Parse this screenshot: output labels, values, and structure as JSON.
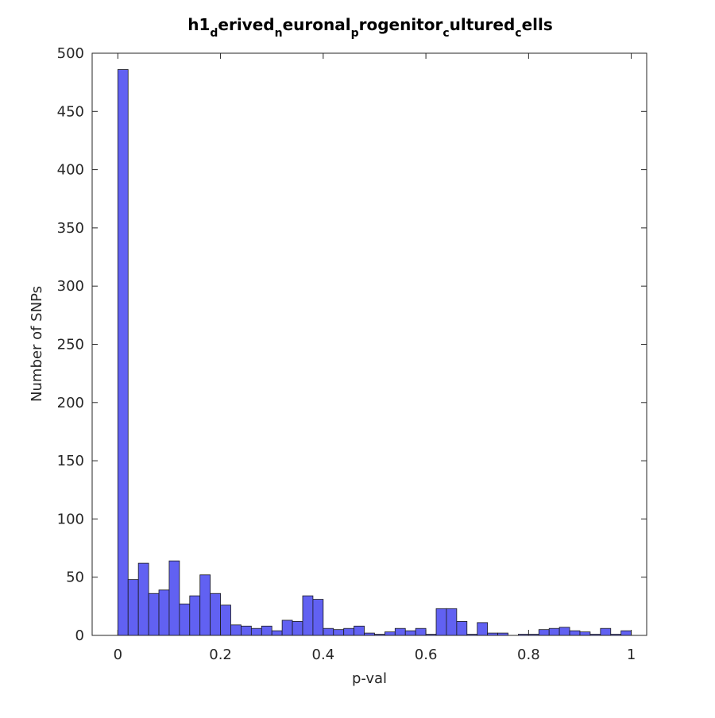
{
  "chart_data": {
    "type": "histogram",
    "title": "h1_derived_neuronal_progenitor_cultured_cells",
    "x_label": "p-val",
    "y_label": "Number of SNPs",
    "bins": [
      0,
      0.02,
      0.04,
      0.06,
      0.08,
      0.1,
      0.12,
      0.14,
      0.16,
      0.18,
      0.2,
      0.22,
      0.24,
      0.26,
      0.28,
      0.3,
      0.32,
      0.34,
      0.36,
      0.38,
      0.4,
      0.42,
      0.44,
      0.46,
      0.48,
      0.5,
      0.52,
      0.54,
      0.56,
      0.58,
      0.6,
      0.62,
      0.64,
      0.66,
      0.68,
      0.7,
      0.72,
      0.74,
      0.76,
      0.78,
      0.8,
      0.82,
      0.84,
      0.86,
      0.88,
      0.9,
      0.92,
      0.94,
      0.96,
      0.98,
      1
    ],
    "values": [
      486,
      48,
      62,
      36,
      39,
      64,
      27,
      34,
      52,
      36,
      26,
      9,
      8,
      6,
      8,
      4,
      13,
      12,
      34,
      31,
      6,
      5,
      6,
      8,
      2,
      1,
      3,
      6,
      4,
      6,
      1,
      23,
      23,
      12,
      1,
      11,
      2,
      2,
      0,
      1,
      1,
      5,
      6,
      7,
      4,
      3,
      1,
      6,
      1,
      4
    ],
    "color": "#6161f2",
    "xlim": [
      -0.05,
      1.03
    ],
    "ylim": [
      0,
      500
    ],
    "xticks": [
      0,
      0.2,
      0.4,
      0.6,
      0.8,
      1
    ],
    "yticks": [
      0,
      50,
      100,
      150,
      200,
      250,
      300,
      350,
      400,
      450,
      500
    ]
  }
}
